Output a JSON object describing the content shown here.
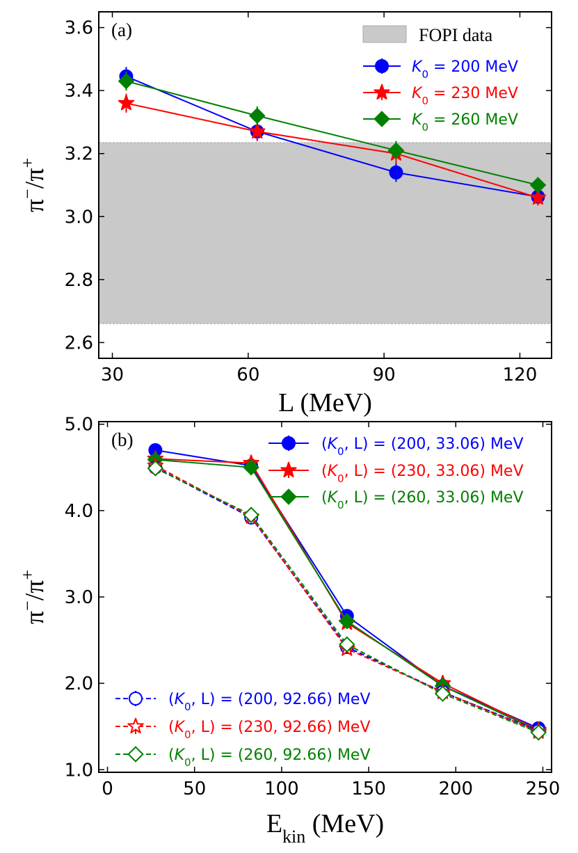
{
  "chart_data": [
    {
      "type": "line",
      "panel_label": "(a)",
      "xlabel": "L (MeV)",
      "ylabel": "π⁻/π⁺",
      "xlim": [
        27,
        127
      ],
      "ylim": [
        2.55,
        3.65
      ],
      "x_ticks": [
        30,
        60,
        90,
        120
      ],
      "x_tick_labels": [
        "30",
        "60",
        "90",
        "120"
      ],
      "y_ticks": [
        2.6,
        2.8,
        3.0,
        3.2,
        3.4,
        3.6
      ],
      "y_tick_labels": [
        "2.6",
        "2.8",
        "3.0",
        "3.2",
        "3.4",
        "3.6"
      ],
      "band": {
        "label": "FOPI data",
        "ymin": 2.66,
        "ymax": 3.235,
        "color": "#c9c9c9"
      },
      "legend_position": "top-right",
      "series": [
        {
          "name": "K0 = 200 MeV",
          "legend_italic": "K",
          "legend_sub": "0",
          "legend_rest": " = 200 MeV",
          "color": "#0000ff",
          "marker": "circle",
          "filled": true,
          "linestyle": "solid",
          "x": [
            33.06,
            61.99,
            92.66,
            124.0
          ],
          "y": [
            3.445,
            3.27,
            3.14,
            3.063
          ],
          "yerr": [
            0.03,
            0.03,
            0.03,
            0.025
          ]
        },
        {
          "name": "K0 = 230 MeV",
          "legend_italic": "K",
          "legend_sub": "0",
          "legend_rest": " = 230 MeV",
          "color": "#ff0000",
          "marker": "star",
          "filled": true,
          "linestyle": "solid",
          "x": [
            33.06,
            61.99,
            92.66,
            124.0
          ],
          "y": [
            3.36,
            3.27,
            3.2,
            3.06
          ],
          "yerr": [
            0.03,
            0.03,
            0.03,
            0.025
          ]
        },
        {
          "name": "K0 = 260 MeV",
          "legend_italic": "K",
          "legend_sub": "0",
          "legend_rest": " = 260 MeV",
          "color": "#008000",
          "marker": "diamond",
          "filled": true,
          "linestyle": "solid",
          "x": [
            33.06,
            61.99,
            92.66,
            124.0
          ],
          "y": [
            3.43,
            3.32,
            3.21,
            3.1
          ],
          "yerr": [
            0.03,
            0.03,
            0.03,
            0.025
          ]
        }
      ]
    },
    {
      "type": "line",
      "panel_label": "(b)",
      "xlabel": "E_kin (MeV)",
      "xlabel_main": "E",
      "xlabel_sub": "kin",
      "xlabel_rest": " (MeV)",
      "ylabel": "π⁻/π⁺",
      "xlim": [
        -5,
        255
      ],
      "ylim": [
        0.97,
        5.03
      ],
      "x_ticks": [
        0,
        50,
        100,
        150,
        200,
        250
      ],
      "x_tick_labels": [
        "0",
        "50",
        "100",
        "150",
        "200",
        "250"
      ],
      "y_ticks": [
        1.0,
        2.0,
        3.0,
        4.0,
        5.0
      ],
      "y_tick_labels": [
        "1.0",
        "2.0",
        "3.0",
        "4.0",
        "5.0"
      ],
      "legend_position": "top-right / bottom-left",
      "series": [
        {
          "name": "(K0, L) = (200, 33.06) MeV",
          "legend_pre": "(",
          "legend_italic": "K",
          "legend_sub": "0",
          "legend_rest": ", L) = (200, 33.06) MeV",
          "color": "#0000ff",
          "marker": "circle",
          "filled": true,
          "linestyle": "solid",
          "x": [
            27.5,
            82.5,
            137.5,
            192.5,
            247.5
          ],
          "y": [
            4.7,
            4.52,
            2.78,
            1.97,
            1.48
          ]
        },
        {
          "name": "(K0, L) = (230, 33.06) MeV",
          "legend_pre": "(",
          "legend_italic": "K",
          "legend_sub": "0",
          "legend_rest": ", L) = (230, 33.06) MeV",
          "color": "#ff0000",
          "marker": "star",
          "filled": true,
          "linestyle": "solid",
          "x": [
            27.5,
            82.5,
            137.5,
            192.5,
            247.5
          ],
          "y": [
            4.6,
            4.55,
            2.7,
            2.0,
            1.46
          ]
        },
        {
          "name": "(K0, L) = (260, 33.06) MeV",
          "legend_pre": "(",
          "legend_italic": "K",
          "legend_sub": "0",
          "legend_rest": ", L) = (260, 33.06) MeV",
          "color": "#008000",
          "marker": "diamond",
          "filled": true,
          "linestyle": "solid",
          "x": [
            27.5,
            82.5,
            137.5,
            192.5,
            247.5
          ],
          "y": [
            4.59,
            4.5,
            2.72,
            1.97,
            1.45
          ]
        },
        {
          "name": "(K0, L) = (200, 92.66) MeV",
          "legend_pre": "(",
          "legend_italic": "K",
          "legend_sub": "0",
          "legend_rest": ", L) = (200, 92.66) MeV",
          "color": "#0000ff",
          "marker": "circle",
          "filled": false,
          "linestyle": "dashed",
          "x": [
            27.5,
            82.5,
            137.5,
            192.5,
            247.5
          ],
          "y": [
            4.5,
            3.92,
            2.42,
            1.9,
            1.45
          ]
        },
        {
          "name": "(K0, L) = (230, 92.66) MeV",
          "legend_pre": "(",
          "legend_italic": "K",
          "legend_sub": "0",
          "legend_rest": ", L) = (230, 92.66) MeV",
          "color": "#ff0000",
          "marker": "star",
          "filled": false,
          "linestyle": "dashed",
          "x": [
            27.5,
            82.5,
            137.5,
            192.5,
            247.5
          ],
          "y": [
            4.52,
            3.93,
            2.4,
            1.9,
            1.44
          ]
        },
        {
          "name": "(K0, L) = (260, 92.66) MeV",
          "legend_pre": "(",
          "legend_italic": "K",
          "legend_sub": "0",
          "legend_rest": ", L) = (260, 92.66) MeV",
          "color": "#008000",
          "marker": "diamond",
          "filled": false,
          "linestyle": "dashed",
          "x": [
            27.5,
            82.5,
            137.5,
            192.5,
            247.5
          ],
          "y": [
            4.49,
            3.95,
            2.45,
            1.88,
            1.43
          ]
        }
      ]
    }
  ]
}
